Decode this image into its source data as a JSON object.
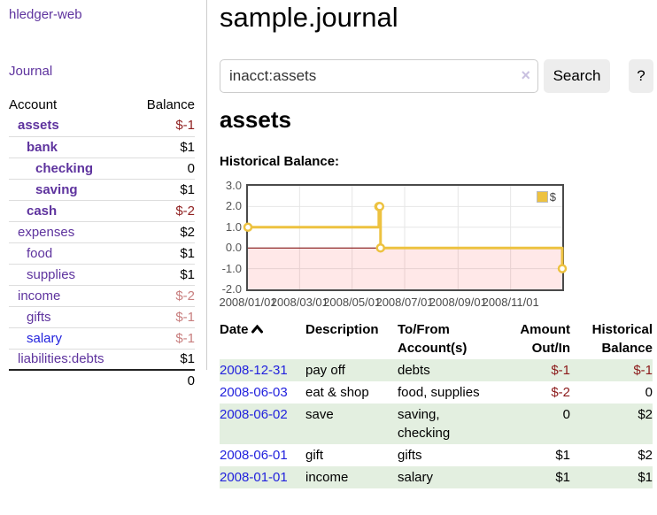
{
  "sidebar": {
    "app_title": "hledger-web",
    "nav": {
      "journal": "Journal"
    },
    "table": {
      "account_header": "Account",
      "balance_header": "Balance"
    },
    "accounts": [
      {
        "name": "assets",
        "indent": 1,
        "bold": true,
        "balance": "$-1",
        "balance_style": "neg-strong",
        "link_style": "purple"
      },
      {
        "name": "bank",
        "indent": 2,
        "bold": true,
        "balance": "$1",
        "balance_style": "",
        "link_style": "purple"
      },
      {
        "name": "checking",
        "indent": 3,
        "bold": true,
        "balance": "0",
        "balance_style": "",
        "link_style": "purple"
      },
      {
        "name": "saving",
        "indent": 3,
        "bold": true,
        "balance": "$1",
        "balance_style": "",
        "link_style": "purple"
      },
      {
        "name": "cash",
        "indent": 2,
        "bold": true,
        "balance": "$-2",
        "balance_style": "neg-strong",
        "link_style": "purple"
      },
      {
        "name": "expenses",
        "indent": 1,
        "bold": false,
        "balance": "$2",
        "balance_style": "",
        "link_style": "purple"
      },
      {
        "name": "food",
        "indent": 2,
        "bold": false,
        "balance": "$1",
        "balance_style": "",
        "link_style": "purple"
      },
      {
        "name": "supplies",
        "indent": 2,
        "bold": false,
        "balance": "$1",
        "balance_style": "",
        "link_style": "purple"
      },
      {
        "name": "income",
        "indent": 1,
        "bold": false,
        "balance": "$-2",
        "balance_style": "neg-light",
        "link_style": "purple"
      },
      {
        "name": "gifts",
        "indent": 2,
        "bold": false,
        "balance": "$-1",
        "balance_style": "neg-light",
        "link_style": "purple"
      },
      {
        "name": "salary",
        "indent": 2,
        "bold": false,
        "balance": "$-1",
        "balance_style": "neg-light",
        "link_style": "blue"
      },
      {
        "name": "liabilities:debts",
        "indent": 1,
        "bold": false,
        "balance": "$1",
        "balance_style": "",
        "link_style": "purple"
      }
    ],
    "total": "0"
  },
  "main": {
    "title": "sample.journal",
    "search": {
      "value": "inacct:assets",
      "clear_icon": "×",
      "button": "Search",
      "help_button": "?"
    },
    "account_heading": "assets",
    "chart_title": "Historical Balance:"
  },
  "chart_data": {
    "type": "line",
    "step": true,
    "title": "Historical Balance",
    "series": [
      {
        "name": "$",
        "points": [
          [
            "2008-01-01",
            1
          ],
          [
            "2008-06-01",
            2
          ],
          [
            "2008-06-02",
            2
          ],
          [
            "2008-06-03",
            0
          ],
          [
            "2008-12-31",
            -1
          ]
        ]
      }
    ],
    "x_range": [
      "2008-01-01",
      "2008-12-31"
    ],
    "ylim": [
      -2,
      3
    ],
    "yticks": [
      "3.0",
      "2.0",
      "1.0",
      "0.0",
      "-1.0",
      "-2.0"
    ],
    "xticks": [
      "2008/01/01",
      "2008/03/01",
      "2008/05/01",
      "2008/07/01",
      "2008/09/01",
      "2008/11/01"
    ],
    "legend": "$",
    "legend_position": "top-right",
    "grid": true,
    "colors": {
      "line": "#EDC240",
      "grid": "#e6e6e6",
      "negative_region": "rgba(255,0,0,0.09)",
      "zero_line": "#7a0000",
      "tick_label": "#545454"
    }
  },
  "register": {
    "headers": [
      {
        "line1": "Date",
        "line2": "",
        "sort": "asc"
      },
      {
        "line1": "Description",
        "line2": ""
      },
      {
        "line1": "To/From",
        "line2": "Account(s)"
      },
      {
        "line1": "Amount",
        "line2": "Out/In"
      },
      {
        "line1": "Historical",
        "line2": "Balance"
      }
    ],
    "rows": [
      {
        "date": "2008-12-31",
        "description": "pay off",
        "accounts": [
          "debts"
        ],
        "amount": "$-1",
        "balance": "$-1"
      },
      {
        "date": "2008-06-03",
        "description": "eat & shop",
        "accounts": [
          "food, supplies"
        ],
        "amount": "$-2",
        "balance": "0"
      },
      {
        "date": "2008-06-02",
        "description": "save",
        "accounts": [
          "saving,",
          "checking"
        ],
        "amount": "0",
        "balance": "$2"
      },
      {
        "date": "2008-06-01",
        "description": "gift",
        "accounts": [
          "gifts"
        ],
        "amount": "$1",
        "balance": "$2"
      },
      {
        "date": "2008-01-01",
        "description": "income",
        "accounts": [
          "salary"
        ],
        "amount": "$1",
        "balance": "$1"
      }
    ]
  }
}
